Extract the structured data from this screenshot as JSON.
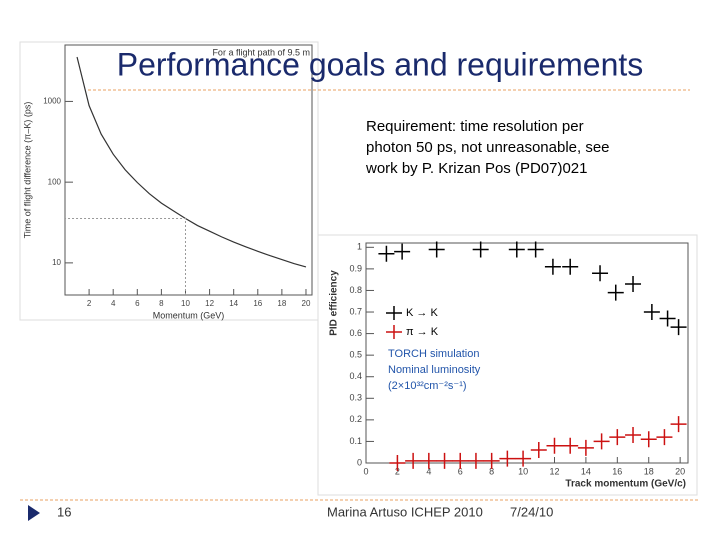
{
  "slide": {
    "title": "Performance goals and requirements",
    "body": [
      "Requirement: time resolution per",
      "photon 50 ps, not unreasonable, see",
      "work by P. Krizan Pos (PD07)021"
    ],
    "page_number": "16",
    "footer": "Marina Artuso ICHEP 2010",
    "date": "7/24/10"
  },
  "chart_data": [
    {
      "type": "line",
      "title": "For a flight path of 9.5 m",
      "x_label": "Momentum  (GeV)",
      "y_label": "Time of flight difference (π–K)  (ps)",
      "x": [
        1,
        2,
        3,
        4,
        5,
        6,
        7,
        8,
        9,
        10,
        11,
        12,
        13,
        14,
        15,
        16,
        17,
        18,
        19,
        20
      ],
      "series": [
        {
          "color": "#333333",
          "values": [
            3550,
            887,
            394,
            222,
            142,
            99,
            72,
            55,
            44,
            35.5,
            29,
            24.7,
            21,
            18.1,
            15.8,
            13.9,
            12.3,
            11,
            9.8,
            8.9
          ]
        }
      ],
      "xlim": [
        0,
        20.5
      ],
      "xticks": [
        2,
        4,
        6,
        8,
        10,
        12,
        14,
        16,
        18,
        20
      ],
      "ylim": [
        4,
        5000
      ],
      "yticks": [
        10,
        100,
        1000
      ],
      "log_y": true
    },
    {
      "type": "scatter",
      "x_label": "Track momentum (GeV/c)",
      "y_label": "PID efficiency",
      "annotations": [
        "TORCH simulation",
        "Nominal luminosity",
        "(2×10³²cm⁻²s⁻¹)"
      ],
      "series": [
        {
          "name": "K → K",
          "color": "#000000",
          "x": [
            1.3,
            2.3,
            4.5,
            7.3,
            9.6,
            10.8,
            11.9,
            13,
            14.9,
            15.9,
            17,
            18.2,
            19.2,
            19.9
          ],
          "values": [
            0.97,
            0.98,
            0.99,
            0.99,
            0.99,
            0.99,
            0.91,
            0.91,
            0.88,
            0.79,
            0.83,
            0.7,
            0.67,
            0.63
          ]
        },
        {
          "name": "π → K",
          "color": "#cc1111",
          "x": [
            2,
            3,
            4,
            5,
            6,
            7,
            8,
            9,
            10,
            11,
            12,
            13,
            14,
            15,
            16,
            17,
            18,
            19,
            19.9
          ],
          "values": [
            0,
            0.01,
            0.01,
            0.01,
            0.01,
            0.01,
            0.01,
            0.02,
            0.02,
            0.06,
            0.08,
            0.08,
            0.07,
            0.1,
            0.12,
            0.13,
            0.11,
            0.12,
            0.18
          ]
        }
      ],
      "xlim": [
        0,
        20.5
      ],
      "xticks": [
        0,
        2,
        4,
        6,
        8,
        10,
        12,
        14,
        16,
        18,
        20
      ],
      "ylim": [
        0,
        1.02
      ],
      "yticks": [
        0,
        0.1,
        0.2,
        0.3,
        0.4,
        0.5,
        0.6,
        0.7,
        0.8,
        0.9,
        1
      ]
    }
  ]
}
